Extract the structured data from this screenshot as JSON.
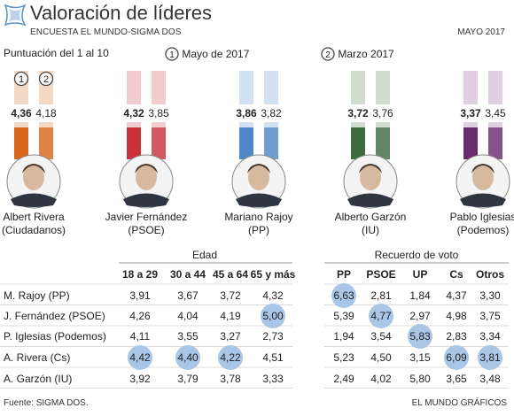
{
  "header": {
    "title": "Valoración de líderes",
    "subtitle": "ENCUESTA EL MUNDO-SIGMA DOS",
    "date": "MAYO 2017",
    "scale_label": "Puntuación del 1 al 10",
    "legend": [
      {
        "marker": "1",
        "label": "Mayo de 2017"
      },
      {
        "marker": "2",
        "label": "Marzo 2017"
      }
    ]
  },
  "chart_data": {
    "type": "bar",
    "title": "Valoración de líderes",
    "subtitle": "Puntuación del 1 al 10",
    "series": [
      {
        "name": "Mayo de 2017",
        "marker": "1",
        "values": [
          4.36,
          4.32,
          3.86,
          3.72,
          3.37
        ]
      },
      {
        "name": "Marzo 2017",
        "marker": "2",
        "values": [
          4.18,
          3.85,
          3.82,
          3.76,
          3.45
        ]
      }
    ],
    "value_labels": [
      [
        "4,36",
        "4,18"
      ],
      [
        "4,32",
        "3,85"
      ],
      [
        "3,86",
        "3,82"
      ],
      [
        "3,72",
        "3,76"
      ],
      [
        "3,37",
        "3,45"
      ]
    ],
    "ylim": [
      0,
      10
    ],
    "leaders": [
      {
        "name": "Albert Rivera",
        "party": "(Ciudadanos)",
        "color": "#d8661c",
        "light": "#f2d9c6"
      },
      {
        "name": "Javier Fernández",
        "party": "(PSOE)",
        "color": "#c8303c",
        "light": "#f1cdd0"
      },
      {
        "name": "Mariano Rajoy",
        "party": "(PP)",
        "color": "#4f86c6",
        "light": "#d3e2f2"
      },
      {
        "name": "Alberto Garzón",
        "party": "(IU)",
        "color": "#3d6b3e",
        "light": "#cfdccf"
      },
      {
        "name": "Pablo Iglesias",
        "party": "(Podemos)",
        "color": "#6a2a6e",
        "light": "#e0cfe1"
      }
    ]
  },
  "table": {
    "group_age": "Edad",
    "group_vote": "Recuerdo de voto",
    "age_columns": [
      "18 a 29",
      "30 a 44",
      "45 a 64",
      "65 y más"
    ],
    "vote_columns": [
      "PP",
      "PSOE",
      "UP",
      "Cs",
      "Otros"
    ],
    "rows": [
      {
        "label": "M. Rajoy (PP)",
        "age": [
          "3,91",
          "3,67",
          "3,72",
          "4,32"
        ],
        "vote": [
          "6,63",
          "2,81",
          "1,84",
          "4,37",
          "3,30"
        ],
        "hi_age": [],
        "hi_vote": [
          0
        ]
      },
      {
        "label": "J. Fernández (PSOE)",
        "age": [
          "4,26",
          "4,04",
          "4,19",
          "5,00"
        ],
        "vote": [
          "5,39",
          "4,77",
          "2,97",
          "4,98",
          "3,75"
        ],
        "hi_age": [
          3
        ],
        "hi_vote": [
          1
        ]
      },
      {
        "label": "P. Iglesias (Podemos)",
        "age": [
          "4,11",
          "3,55",
          "3,27",
          "2,73"
        ],
        "vote": [
          "1,94",
          "3,54",
          "5,83",
          "2,83",
          "3,34"
        ],
        "hi_age": [],
        "hi_vote": [
          2
        ]
      },
      {
        "label": "A. Rivera (Cs)",
        "age": [
          "4,42",
          "4,40",
          "4,22",
          "4,51"
        ],
        "vote": [
          "5,23",
          "4,50",
          "3,15",
          "6,09",
          "3,81"
        ],
        "hi_age": [
          0,
          1,
          2
        ],
        "hi_vote": [
          3,
          4
        ]
      },
      {
        "label": "A. Garzón (IU)",
        "age": [
          "3,92",
          "3,79",
          "3,78",
          "3,33"
        ],
        "vote": [
          "2,49",
          "4,02",
          "5,80",
          "3,65",
          "3,48"
        ],
        "hi_age": [],
        "hi_vote": []
      }
    ]
  },
  "footer": {
    "source": "Fuente: SIGMA DOS.",
    "credit": "EL MUNDO GRÁFICOS"
  },
  "colors": {
    "highlight": "#a9c6e6",
    "marker_border": "#555555"
  }
}
